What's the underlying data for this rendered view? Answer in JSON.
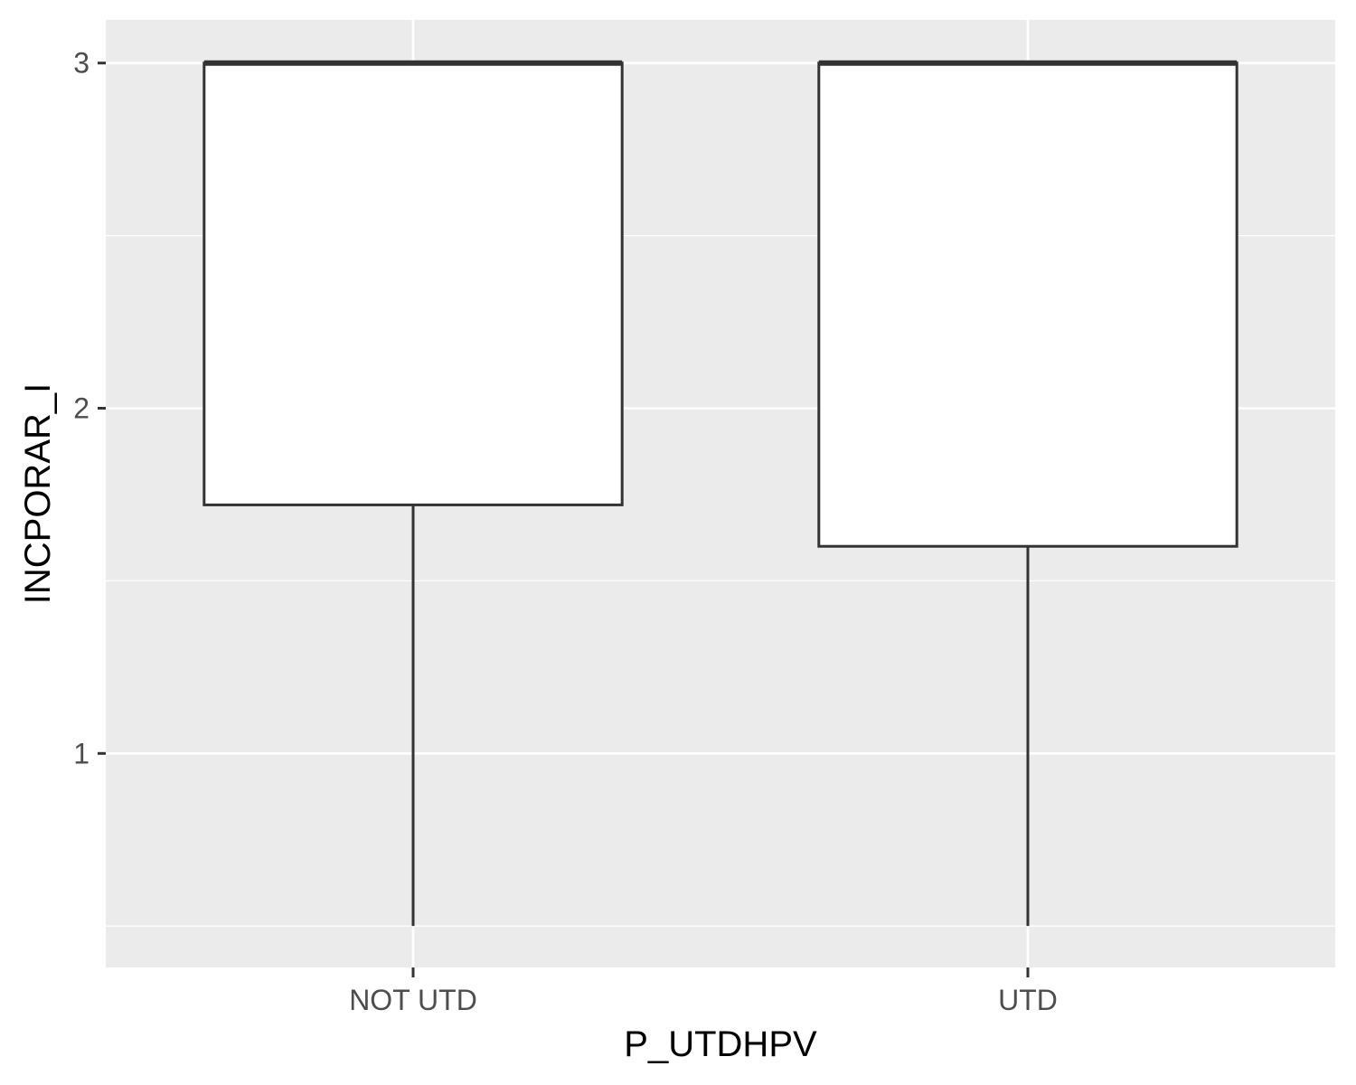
{
  "chart_data": {
    "type": "boxplot",
    "xlabel": "P_UTDHPV",
    "ylabel": "INCPORAR_I",
    "categories": [
      "NOT UTD",
      "UTD"
    ],
    "boxes": [
      {
        "category": "NOT UTD",
        "whisker_low": 0.5,
        "q1": 1.72,
        "median": 3.0,
        "q3": 3.0,
        "whisker_high": 3.0
      },
      {
        "category": "UTD",
        "whisker_low": 0.5,
        "q1": 1.6,
        "median": 3.0,
        "q3": 3.0,
        "whisker_high": 3.0
      }
    ],
    "yticks": [
      1,
      2,
      3
    ],
    "ylim": [
      0.38,
      3.125
    ],
    "grid": true,
    "colors": {
      "panel_background": "#ebebeb",
      "grid_line": "#ffffff",
      "box_fill": "#ffffff",
      "box_stroke": "#333333",
      "axis_tick": "#333333"
    }
  }
}
